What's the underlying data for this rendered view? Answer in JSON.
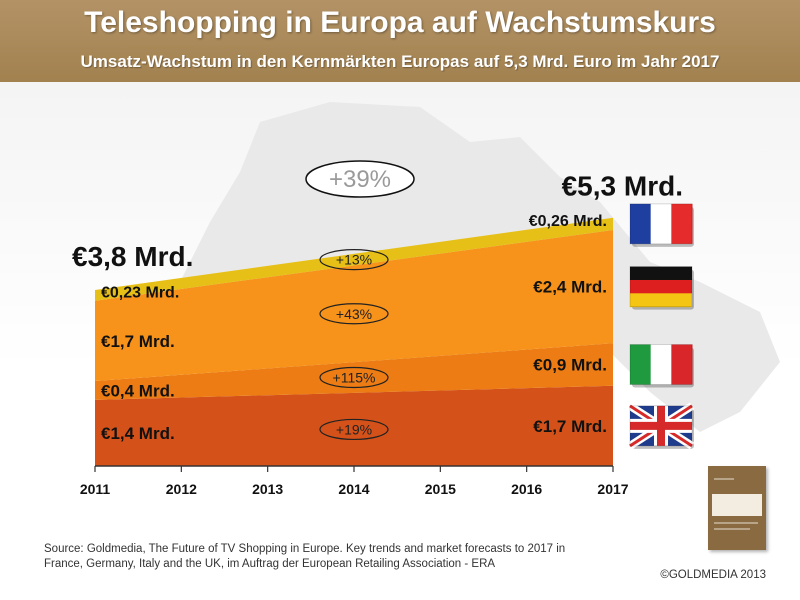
{
  "header": {
    "title": "Teleshopping in Europa auf Wachstumskurs",
    "subtitle": "Umsatz-Wachstum in den Kernmärkten Europas auf 5,3 Mrd. Euro im Jahr 2017"
  },
  "chart_data": {
    "type": "area",
    "stacked": true,
    "x": [
      "2011",
      "2012",
      "2013",
      "2014",
      "2015",
      "2016",
      "2017"
    ],
    "x_values": [
      2011,
      2017
    ],
    "ylim": [
      0,
      5.3
    ],
    "series": [
      {
        "name": "UK",
        "values": [
          1.4,
          1.7
        ],
        "color": "#d4521a",
        "start_label": "€1,4 Mrd.",
        "end_label": "€1,7 Mrd.",
        "growth": "+19%",
        "flag": "uk-flag-icon"
      },
      {
        "name": "Italy",
        "values": [
          0.4,
          0.9
        ],
        "color": "#ec7c13",
        "start_label": "€0,4 Mrd.",
        "end_label": "€0,9 Mrd.",
        "growth": "+115%",
        "flag": "italy-flag-icon"
      },
      {
        "name": "Germany",
        "values": [
          1.7,
          2.4
        ],
        "color": "#f7931b",
        "start_label": "€1,7 Mrd.",
        "end_label": "€2,4 Mrd.",
        "growth": "+43%",
        "flag": "germany-flag-icon"
      },
      {
        "name": "France",
        "values": [
          0.23,
          0.26
        ],
        "color": "#e7c017",
        "start_label": "€0,23 Mrd.",
        "end_label": "€0,26 Mrd.",
        "growth": "+13%",
        "flag": "france-flag-icon"
      }
    ],
    "totals": {
      "start": "€3,8 Mrd.",
      "end": "€5,3 Mrd.",
      "growth": "+39%"
    },
    "grid": false,
    "legend": "none"
  },
  "footer": {
    "source": "Source: Goldmedia, The Future of TV Shopping in Europe. Key trends and market forecasts to 2017 in France, Germany, Italy and the UK, im Auftrag der European Retailing Association - ERA",
    "copyright": "©GOLDMEDIA 2013",
    "book_icon": "report-cover-icon"
  }
}
